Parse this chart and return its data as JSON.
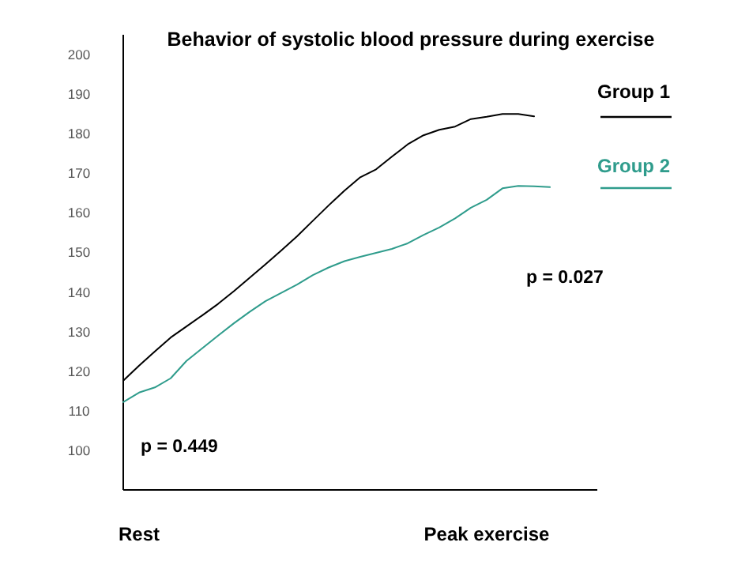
{
  "chart_data": {
    "type": "line",
    "title": "Behavior of systolic blood pressure during exercise",
    "categories": [
      null,
      "Rest",
      null,
      null,
      null,
      null,
      null,
      null,
      null,
      null,
      null,
      null,
      null,
      null,
      null,
      null,
      null,
      null,
      null,
      null,
      null,
      null,
      null,
      "Peak exercise",
      null,
      null,
      null,
      null,
      null,
      null,
      null
    ],
    "ylim": [
      90,
      205
    ],
    "yticks": [
      100,
      110,
      120,
      130,
      140,
      150,
      160,
      170,
      180,
      190,
      200
    ],
    "grid": false,
    "legend": "top right",
    "marker": "none",
    "line_style": "solid",
    "series": [
      {
        "name": "Group 1",
        "color": "#000000",
        "values": [
          117.6,
          121.4,
          125.0,
          128.5,
          131.3,
          134.1,
          137.0,
          140.2,
          143.6,
          147.0,
          150.5,
          154.1,
          158.0,
          161.9,
          165.6,
          169.0,
          171.0,
          174.2,
          177.3,
          179.6,
          181.0,
          181.8,
          183.7,
          184.3,
          185.0,
          185.0,
          184.4,
          null,
          null,
          null,
          null
        ]
      },
      {
        "name": "Group 2",
        "color": "#2f9c8c",
        "values": [
          112.2,
          114.6,
          115.9,
          118.2,
          122.6,
          125.8,
          129.0,
          132.1,
          135.0,
          137.7,
          139.8,
          141.9,
          144.3,
          146.2,
          147.8,
          148.9,
          149.9,
          150.9,
          152.3,
          154.4,
          156.3,
          158.6,
          161.3,
          163.3,
          166.2,
          166.8,
          166.7,
          166.5,
          null,
          null,
          null
        ]
      }
    ],
    "annotations": [
      "p = 0.449",
      "p = 0.027"
    ]
  }
}
